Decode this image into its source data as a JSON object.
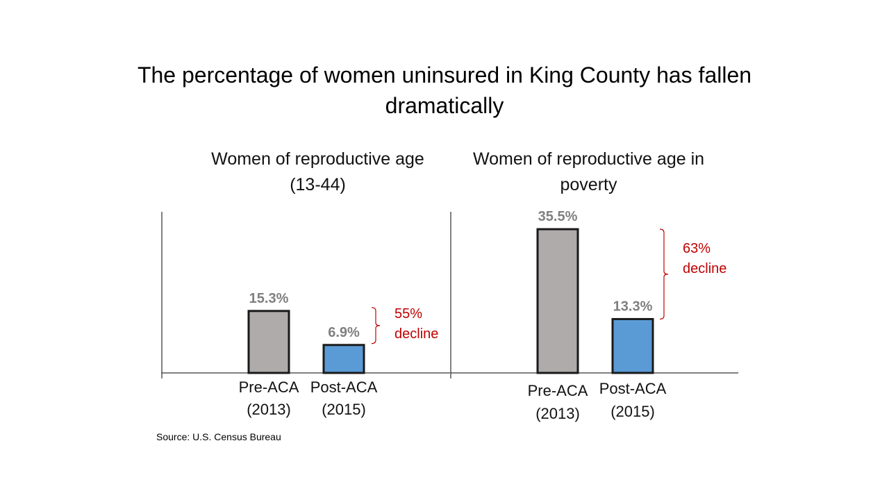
{
  "title": "The percentage of women uninsured in King County has fallen dramatically",
  "source": "Source: U.S. Census Bureau",
  "colors": {
    "pre": "#AFABAB",
    "post": "#5B9BD5",
    "label": "#7F7F7F",
    "annotation": "#C00000",
    "outline": "#1a1a1a"
  },
  "chart_data": [
    {
      "type": "bar",
      "title": "Women of reproductive age (13-44)",
      "categories": [
        "Pre-ACA (2013)",
        "Post-ACA (2015)"
      ],
      "values": [
        15.3,
        6.9
      ],
      "data_labels": [
        "15.3%",
        "6.9%"
      ],
      "annotation": [
        "55%",
        "decline"
      ],
      "ylim": [
        0,
        40
      ]
    },
    {
      "type": "bar",
      "title": "Women of reproductive age in poverty",
      "categories": [
        "Pre-ACA (2013)",
        "Post-ACA (2015)"
      ],
      "values": [
        35.5,
        13.3
      ],
      "data_labels": [
        "35.5%",
        "13.3%"
      ],
      "annotation": [
        "63%",
        "decline"
      ],
      "ylim": [
        0,
        40
      ]
    }
  ]
}
